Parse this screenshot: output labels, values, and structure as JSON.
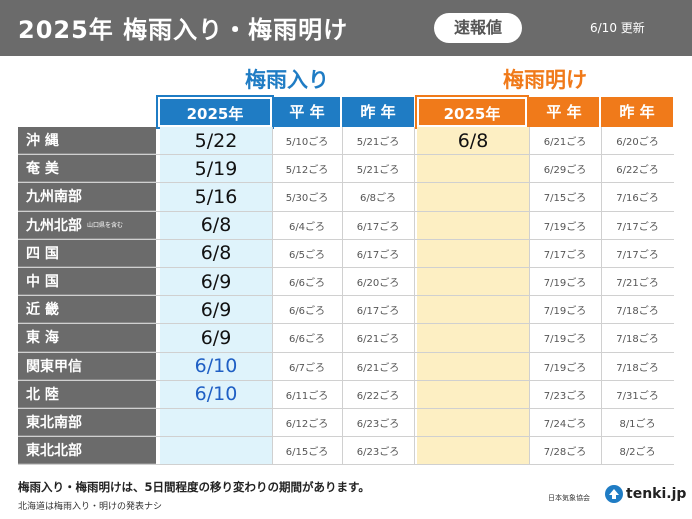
{
  "header": {
    "title": "2025年 梅雨入り・梅雨明け",
    "badge": "速報値",
    "updated": "6/10 更新"
  },
  "sections": {
    "onset_title": "梅雨入り",
    "end_title": "梅雨明け"
  },
  "columns": {
    "current_year": "2025年",
    "normal": "平 年",
    "last_year": "昨 年"
  },
  "rows": [
    {
      "region": "沖 縄",
      "note": "",
      "onset_2025": "5/22",
      "onset_normal": "5/10ごろ",
      "onset_last": "5/21ごろ",
      "end_2025": "6/8",
      "end_normal": "6/21ごろ",
      "end_last": "6/20ごろ"
    },
    {
      "region": "奄 美",
      "note": "",
      "onset_2025": "5/19",
      "onset_normal": "5/12ごろ",
      "onset_last": "5/21ごろ",
      "end_2025": "",
      "end_normal": "6/29ごろ",
      "end_last": "6/22ごろ"
    },
    {
      "region": "九州南部",
      "note": "",
      "onset_2025": "5/16",
      "onset_normal": "5/30ごろ",
      "onset_last": "6/8ごろ",
      "end_2025": "",
      "end_normal": "7/15ごろ",
      "end_last": "7/16ごろ"
    },
    {
      "region": "九州北部",
      "note": "山口県を含む",
      "onset_2025": "6/8",
      "onset_normal": "6/4ごろ",
      "onset_last": "6/17ごろ",
      "end_2025": "",
      "end_normal": "7/19ごろ",
      "end_last": "7/17ごろ"
    },
    {
      "region": "四 国",
      "note": "",
      "onset_2025": "6/8",
      "onset_normal": "6/5ごろ",
      "onset_last": "6/17ごろ",
      "end_2025": "",
      "end_normal": "7/17ごろ",
      "end_last": "7/17ごろ"
    },
    {
      "region": "中 国",
      "note": "",
      "onset_2025": "6/9",
      "onset_normal": "6/6ごろ",
      "onset_last": "6/20ごろ",
      "end_2025": "",
      "end_normal": "7/19ごろ",
      "end_last": "7/21ごろ"
    },
    {
      "region": "近 畿",
      "note": "",
      "onset_2025": "6/9",
      "onset_normal": "6/6ごろ",
      "onset_last": "6/17ごろ",
      "end_2025": "",
      "end_normal": "7/19ごろ",
      "end_last": "7/18ごろ"
    },
    {
      "region": "東 海",
      "note": "",
      "onset_2025": "6/9",
      "onset_normal": "6/6ごろ",
      "onset_last": "6/21ごろ",
      "end_2025": "",
      "end_normal": "7/19ごろ",
      "end_last": "7/18ごろ"
    },
    {
      "region": "関東甲信",
      "note": "",
      "onset_2025": "6/10",
      "onset_normal": "6/7ごろ",
      "onset_last": "6/21ごろ",
      "end_2025": "",
      "end_normal": "7/19ごろ",
      "end_last": "7/18ごろ",
      "highlight": true
    },
    {
      "region": "北 陸",
      "note": "",
      "onset_2025": "6/10",
      "onset_normal": "6/11ごろ",
      "onset_last": "6/22ごろ",
      "end_2025": "",
      "end_normal": "7/23ごろ",
      "end_last": "7/31ごろ",
      "highlight": true
    },
    {
      "region": "東北南部",
      "note": "",
      "onset_2025": "",
      "onset_normal": "6/12ごろ",
      "onset_last": "6/23ごろ",
      "end_2025": "",
      "end_normal": "7/24ごろ",
      "end_last": "8/1ごろ"
    },
    {
      "region": "東北北部",
      "note": "",
      "onset_2025": "",
      "onset_normal": "6/15ごろ",
      "onset_last": "6/23ごろ",
      "end_2025": "",
      "end_normal": "7/28ごろ",
      "end_last": "8/2ごろ"
    }
  ],
  "footnotes": {
    "line1": "梅雨入り・梅雨明けは、5日間程度の移り変わりの期間があります。",
    "line2": "北海道は梅雨入り・明けの発表ナシ"
  },
  "credit": {
    "source": "日本気象協会",
    "logo": "tenki.jp"
  },
  "colors": {
    "header_gray": "#6b6b6b",
    "onset_blue": "#1f7cc4",
    "end_orange": "#f07a1a",
    "onset_cell_bg": "#dff3fb",
    "end_cell_bg": "#fdefc3",
    "new_value_blue": "#1f5fc4"
  }
}
